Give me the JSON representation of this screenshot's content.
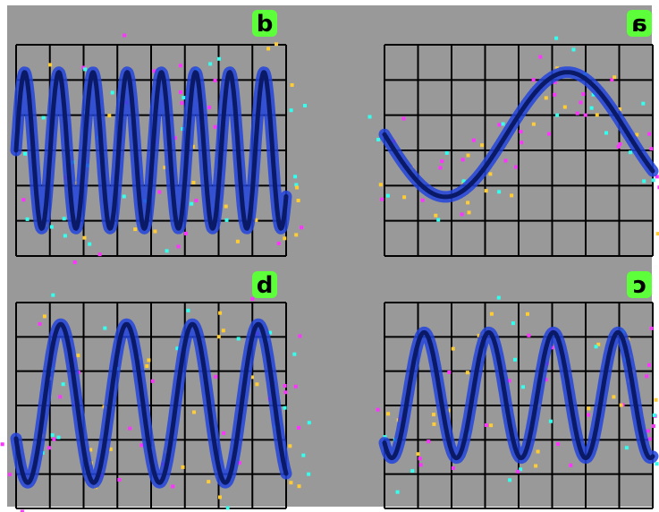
{
  "colors": {
    "background": "#999999",
    "frame": "#ffffff",
    "grid": "#000000",
    "trace_halo": "#2244dd",
    "trace_core": "#0a1a66",
    "label_bg": "#5cff3a",
    "noise": [
      "#ff33ff",
      "#ffcc33",
      "#33ffee"
    ]
  },
  "chart_data": [
    {
      "type": "line",
      "panel_label": "d",
      "grid": true,
      "grid_cells": [
        8,
        6
      ],
      "ylim": [
        -1,
        1
      ],
      "series": [
        {
          "x_range": [
            0,
            1
          ],
          "amplitude": 0.74,
          "cycles": 7.9,
          "phase": 0,
          "offset": 0
        }
      ]
    },
    {
      "type": "line",
      "panel_label": "a",
      "grid": true,
      "grid_cells": [
        8,
        6
      ],
      "ylim": [
        -1,
        1
      ],
      "series": [
        {
          "x_range": [
            0,
            1
          ],
          "amplitude": 0.59,
          "cycles": 1.1,
          "phase": 3.14,
          "offset": 0.15
        }
      ]
    },
    {
      "type": "line",
      "panel_label": "b",
      "grid": true,
      "grid_cells": [
        8,
        6
      ],
      "ylim": [
        -1,
        1
      ],
      "series": [
        {
          "x_range": [
            0,
            1
          ],
          "amplitude": 0.77,
          "cycles": 4.1,
          "phase": 3.6,
          "offset": 0.02
        }
      ]
    },
    {
      "type": "line",
      "panel_label": "c",
      "grid": true,
      "grid_cells": [
        8,
        6
      ],
      "ylim": [
        -1,
        1
      ],
      "series": [
        {
          "x_range": [
            0,
            1
          ],
          "amplitude": 0.61,
          "cycles": 4.15,
          "phase": 4.0,
          "offset": 0.1
        }
      ]
    }
  ]
}
